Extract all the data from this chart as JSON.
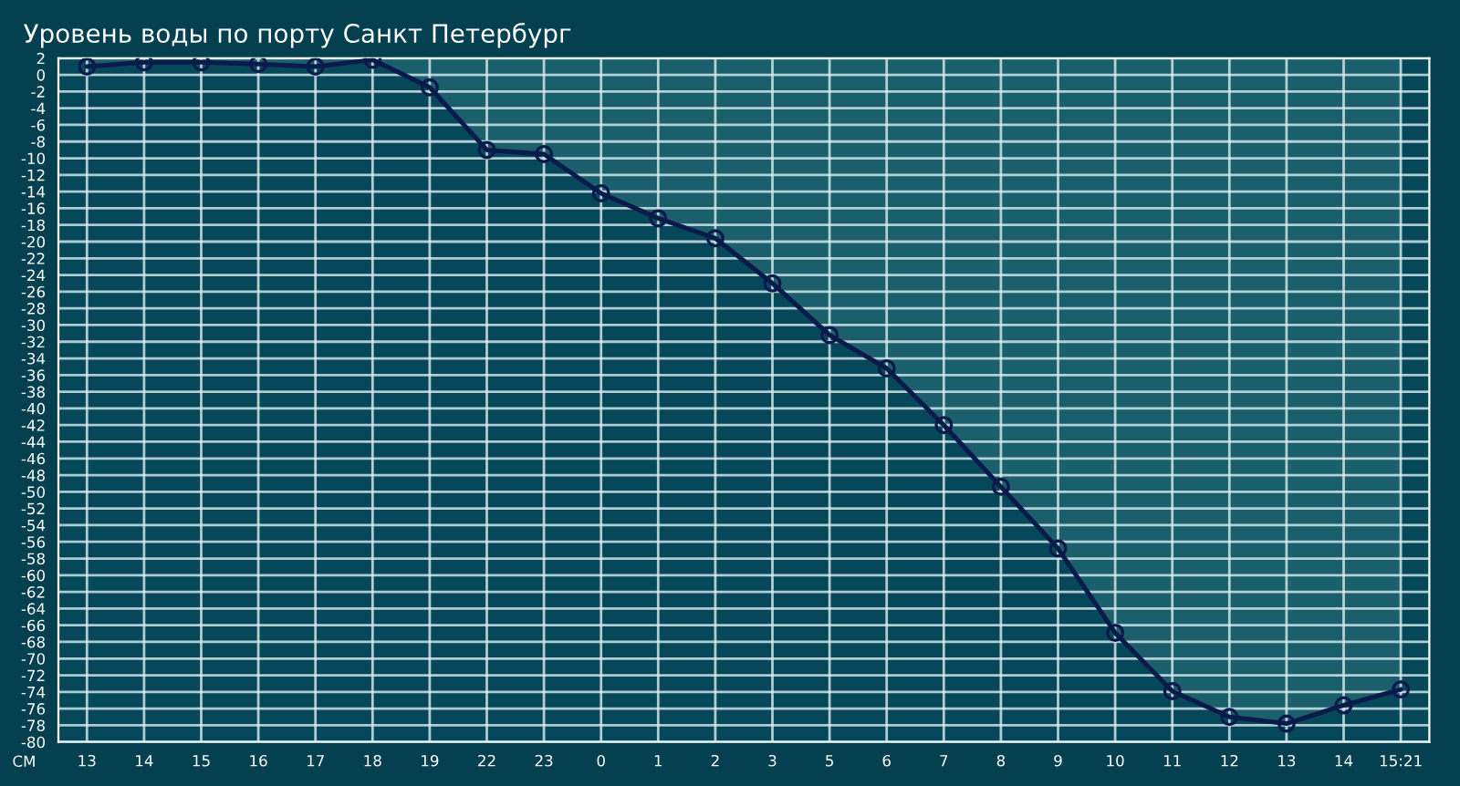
{
  "chart_data": {
    "type": "line",
    "title": "Уровень воды по порту Санкт Петербург",
    "ylabel": "СМ",
    "categories": [
      "13",
      "14",
      "15",
      "16",
      "17",
      "18",
      "19",
      "22",
      "23",
      "0",
      "1",
      "2",
      "3",
      "5",
      "6",
      "7",
      "8",
      "9",
      "10",
      "11",
      "12",
      "13",
      "14",
      "15:21"
    ],
    "series": [
      {
        "color": "#0a1a4a",
        "values": [
          1,
          1.5,
          1.5,
          1.3,
          1,
          1.8,
          -1.5,
          -9,
          -9.5,
          -14.2,
          -17.2,
          -19.6,
          -25,
          -31.2,
          -35.2,
          -42,
          -49.4,
          -56.8,
          -66.9,
          -73.9,
          -77,
          -77.8,
          -75.6,
          -73.7
        ]
      }
    ],
    "ylim": [
      -80,
      2
    ],
    "yticks": [
      2,
      0,
      -2,
      -4,
      -6,
      -8,
      -10,
      -12,
      -14,
      -16,
      -18,
      -20,
      -22,
      -24,
      -26,
      -28,
      -30,
      -32,
      -34,
      -36,
      -38,
      -40,
      -42,
      -44,
      -46,
      -48,
      -50,
      -52,
      -54,
      -56,
      -58,
      -60,
      -62,
      -64,
      -66,
      -68,
      -70,
      -72,
      -74,
      -76,
      -78,
      -80
    ],
    "grid": true,
    "marker": "circle",
    "line_style": "solid",
    "legend": false
  }
}
